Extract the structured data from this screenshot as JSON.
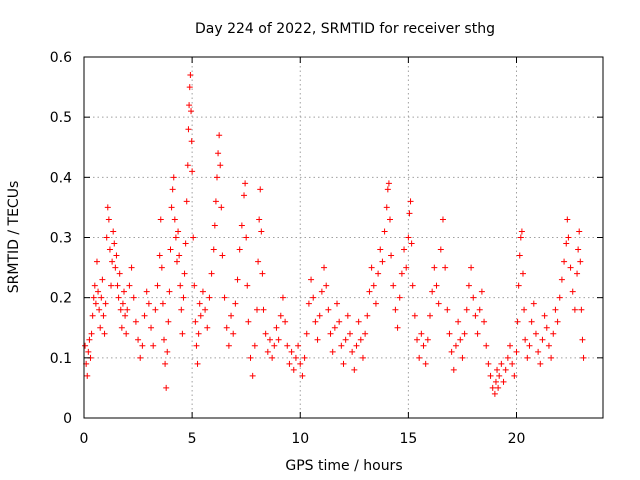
{
  "chart_data": {
    "type": "scatter",
    "title": "Day 224 of 2022, SRMTID for receiver sthg",
    "xlabel": "GPS time / hours",
    "ylabel": "SRMTID / TECUs",
    "xlim": [
      0,
      24
    ],
    "ylim": [
      0,
      0.6
    ],
    "xticks": [
      0,
      5,
      10,
      15,
      20
    ],
    "yticks": [
      0,
      0.1,
      0.2,
      0.3,
      0.4,
      0.5,
      0.6
    ],
    "xtick_labels": [
      "0",
      "5",
      "10",
      "15",
      "20"
    ],
    "ytick_labels": [
      "0",
      "0.1",
      "0.2",
      "0.3",
      "0.4",
      "0.5",
      "0.6"
    ],
    "grid": true,
    "marker": "+",
    "color": "#ff0000",
    "series": [
      {
        "name": "SRMTID",
        "points": [
          [
            0.05,
            0.12
          ],
          [
            0.1,
            0.09
          ],
          [
            0.15,
            0.07
          ],
          [
            0.2,
            0.11
          ],
          [
            0.25,
            0.13
          ],
          [
            0.3,
            0.1
          ],
          [
            0.35,
            0.14
          ],
          [
            0.4,
            0.17
          ],
          [
            0.45,
            0.2
          ],
          [
            0.5,
            0.22
          ],
          [
            0.55,
            0.19
          ],
          [
            0.6,
            0.26
          ],
          [
            0.65,
            0.21
          ],
          [
            0.7,
            0.18
          ],
          [
            0.75,
            0.15
          ],
          [
            0.8,
            0.2
          ],
          [
            0.85,
            0.23
          ],
          [
            0.9,
            0.17
          ],
          [
            0.95,
            0.14
          ],
          [
            1.0,
            0.19
          ],
          [
            1.05,
            0.3
          ],
          [
            1.1,
            0.35
          ],
          [
            1.15,
            0.33
          ],
          [
            1.2,
            0.28
          ],
          [
            1.25,
            0.22
          ],
          [
            1.3,
            0.26
          ],
          [
            1.35,
            0.31
          ],
          [
            1.4,
            0.29
          ],
          [
            1.45,
            0.25
          ],
          [
            1.5,
            0.27
          ],
          [
            1.55,
            0.22
          ],
          [
            1.6,
            0.2
          ],
          [
            1.65,
            0.24
          ],
          [
            1.7,
            0.18
          ],
          [
            1.75,
            0.15
          ],
          [
            1.8,
            0.19
          ],
          [
            1.85,
            0.21
          ],
          [
            1.9,
            0.17
          ],
          [
            1.95,
            0.14
          ],
          [
            2.0,
            0.18
          ],
          [
            2.1,
            0.22
          ],
          [
            2.2,
            0.25
          ],
          [
            2.3,
            0.2
          ],
          [
            2.4,
            0.16
          ],
          [
            2.5,
            0.13
          ],
          [
            2.6,
            0.1
          ],
          [
            2.7,
            0.12
          ],
          [
            2.8,
            0.17
          ],
          [
            2.9,
            0.21
          ],
          [
            3.0,
            0.19
          ],
          [
            3.1,
            0.15
          ],
          [
            3.2,
            0.12
          ],
          [
            3.3,
            0.18
          ],
          [
            3.4,
            0.22
          ],
          [
            3.5,
            0.27
          ],
          [
            3.55,
            0.33
          ],
          [
            3.6,
            0.25
          ],
          [
            3.65,
            0.19
          ],
          [
            3.7,
            0.13
          ],
          [
            3.75,
            0.09
          ],
          [
            3.8,
            0.05
          ],
          [
            3.85,
            0.11
          ],
          [
            3.9,
            0.16
          ],
          [
            3.95,
            0.21
          ],
          [
            4.0,
            0.28
          ],
          [
            4.05,
            0.35
          ],
          [
            4.1,
            0.38
          ],
          [
            4.15,
            0.4
          ],
          [
            4.2,
            0.33
          ],
          [
            4.25,
            0.3
          ],
          [
            4.3,
            0.26
          ],
          [
            4.35,
            0.31
          ],
          [
            4.4,
            0.27
          ],
          [
            4.45,
            0.22
          ],
          [
            4.5,
            0.18
          ],
          [
            4.55,
            0.14
          ],
          [
            4.6,
            0.2
          ],
          [
            4.65,
            0.24
          ],
          [
            4.7,
            0.29
          ],
          [
            4.75,
            0.36
          ],
          [
            4.8,
            0.42
          ],
          [
            4.83,
            0.48
          ],
          [
            4.86,
            0.52
          ],
          [
            4.89,
            0.55
          ],
          [
            4.92,
            0.57
          ],
          [
            4.95,
            0.51
          ],
          [
            4.98,
            0.46
          ],
          [
            5.0,
            0.41
          ],
          [
            5.05,
            0.3
          ],
          [
            5.1,
            0.22
          ],
          [
            5.15,
            0.16
          ],
          [
            5.2,
            0.12
          ],
          [
            5.25,
            0.09
          ],
          [
            5.3,
            0.14
          ],
          [
            5.35,
            0.19
          ],
          [
            5.4,
            0.17
          ],
          [
            5.5,
            0.21
          ],
          [
            5.6,
            0.18
          ],
          [
            5.7,
            0.15
          ],
          [
            5.8,
            0.2
          ],
          [
            5.9,
            0.24
          ],
          [
            6.0,
            0.28
          ],
          [
            6.05,
            0.32
          ],
          [
            6.1,
            0.36
          ],
          [
            6.15,
            0.4
          ],
          [
            6.2,
            0.44
          ],
          [
            6.25,
            0.47
          ],
          [
            6.3,
            0.42
          ],
          [
            6.35,
            0.35
          ],
          [
            6.4,
            0.27
          ],
          [
            6.5,
            0.2
          ],
          [
            6.6,
            0.15
          ],
          [
            6.7,
            0.12
          ],
          [
            6.8,
            0.17
          ],
          [
            6.9,
            0.14
          ],
          [
            7.0,
            0.19
          ],
          [
            7.1,
            0.23
          ],
          [
            7.2,
            0.28
          ],
          [
            7.3,
            0.32
          ],
          [
            7.4,
            0.37
          ],
          [
            7.45,
            0.39
          ],
          [
            7.5,
            0.3
          ],
          [
            7.55,
            0.22
          ],
          [
            7.6,
            0.16
          ],
          [
            7.7,
            0.1
          ],
          [
            7.8,
            0.07
          ],
          [
            7.9,
            0.12
          ],
          [
            8.0,
            0.18
          ],
          [
            8.05,
            0.26
          ],
          [
            8.1,
            0.33
          ],
          [
            8.15,
            0.38
          ],
          [
            8.2,
            0.31
          ],
          [
            8.25,
            0.24
          ],
          [
            8.3,
            0.18
          ],
          [
            8.4,
            0.14
          ],
          [
            8.5,
            0.11
          ],
          [
            8.6,
            0.13
          ],
          [
            8.7,
            0.1
          ],
          [
            8.8,
            0.12
          ],
          [
            8.9,
            0.15
          ],
          [
            9.0,
            0.13
          ],
          [
            9.1,
            0.17
          ],
          [
            9.2,
            0.2
          ],
          [
            9.3,
            0.16
          ],
          [
            9.4,
            0.12
          ],
          [
            9.5,
            0.09
          ],
          [
            9.6,
            0.11
          ],
          [
            9.7,
            0.08
          ],
          [
            9.8,
            0.1
          ],
          [
            9.9,
            0.12
          ],
          [
            10.0,
            0.09
          ],
          [
            10.1,
            0.07
          ],
          [
            10.2,
            0.1
          ],
          [
            10.3,
            0.14
          ],
          [
            10.4,
            0.19
          ],
          [
            10.5,
            0.23
          ],
          [
            10.6,
            0.2
          ],
          [
            10.7,
            0.16
          ],
          [
            10.8,
            0.13
          ],
          [
            10.9,
            0.17
          ],
          [
            11.0,
            0.21
          ],
          [
            11.1,
            0.25
          ],
          [
            11.2,
            0.22
          ],
          [
            11.3,
            0.18
          ],
          [
            11.4,
            0.14
          ],
          [
            11.5,
            0.11
          ],
          [
            11.6,
            0.15
          ],
          [
            11.7,
            0.19
          ],
          [
            11.8,
            0.16
          ],
          [
            11.9,
            0.12
          ],
          [
            12.0,
            0.09
          ],
          [
            12.1,
            0.13
          ],
          [
            12.2,
            0.17
          ],
          [
            12.3,
            0.14
          ],
          [
            12.4,
            0.11
          ],
          [
            12.5,
            0.08
          ],
          [
            12.6,
            0.12
          ],
          [
            12.7,
            0.16
          ],
          [
            12.8,
            0.13
          ],
          [
            12.9,
            0.1
          ],
          [
            13.0,
            0.14
          ],
          [
            13.1,
            0.17
          ],
          [
            13.2,
            0.21
          ],
          [
            13.3,
            0.25
          ],
          [
            13.4,
            0.22
          ],
          [
            13.5,
            0.19
          ],
          [
            13.6,
            0.24
          ],
          [
            13.7,
            0.28
          ],
          [
            13.8,
            0.26
          ],
          [
            13.9,
            0.31
          ],
          [
            14.0,
            0.35
          ],
          [
            14.05,
            0.38
          ],
          [
            14.1,
            0.39
          ],
          [
            14.15,
            0.33
          ],
          [
            14.2,
            0.27
          ],
          [
            14.3,
            0.22
          ],
          [
            14.4,
            0.18
          ],
          [
            14.5,
            0.15
          ],
          [
            14.6,
            0.2
          ],
          [
            14.7,
            0.24
          ],
          [
            14.8,
            0.28
          ],
          [
            14.9,
            0.25
          ],
          [
            15.0,
            0.3
          ],
          [
            15.05,
            0.34
          ],
          [
            15.1,
            0.36
          ],
          [
            15.15,
            0.29
          ],
          [
            15.2,
            0.22
          ],
          [
            15.3,
            0.17
          ],
          [
            15.4,
            0.13
          ],
          [
            15.5,
            0.1
          ],
          [
            15.6,
            0.14
          ],
          [
            15.7,
            0.12
          ],
          [
            15.8,
            0.09
          ],
          [
            15.9,
            0.13
          ],
          [
            16.0,
            0.17
          ],
          [
            16.1,
            0.21
          ],
          [
            16.2,
            0.25
          ],
          [
            16.3,
            0.22
          ],
          [
            16.4,
            0.19
          ],
          [
            16.5,
            0.28
          ],
          [
            16.6,
            0.33
          ],
          [
            16.7,
            0.25
          ],
          [
            16.8,
            0.18
          ],
          [
            16.9,
            0.14
          ],
          [
            17.0,
            0.11
          ],
          [
            17.1,
            0.08
          ],
          [
            17.2,
            0.12
          ],
          [
            17.3,
            0.16
          ],
          [
            17.4,
            0.13
          ],
          [
            17.5,
            0.1
          ],
          [
            17.6,
            0.14
          ],
          [
            17.7,
            0.18
          ],
          [
            17.8,
            0.22
          ],
          [
            17.9,
            0.25
          ],
          [
            18.0,
            0.2
          ],
          [
            18.1,
            0.17
          ],
          [
            18.2,
            0.14
          ],
          [
            18.3,
            0.18
          ],
          [
            18.4,
            0.21
          ],
          [
            18.5,
            0.16
          ],
          [
            18.6,
            0.12
          ],
          [
            18.7,
            0.09
          ],
          [
            18.8,
            0.07
          ],
          [
            18.9,
            0.05
          ],
          [
            19.0,
            0.04
          ],
          [
            19.05,
            0.06
          ],
          [
            19.1,
            0.08
          ],
          [
            19.15,
            0.05
          ],
          [
            19.2,
            0.07
          ],
          [
            19.3,
            0.09
          ],
          [
            19.4,
            0.06
          ],
          [
            19.5,
            0.08
          ],
          [
            19.6,
            0.1
          ],
          [
            19.7,
            0.12
          ],
          [
            19.8,
            0.09
          ],
          [
            19.9,
            0.07
          ],
          [
            20.0,
            0.11
          ],
          [
            20.05,
            0.16
          ],
          [
            20.1,
            0.22
          ],
          [
            20.15,
            0.27
          ],
          [
            20.2,
            0.3
          ],
          [
            20.25,
            0.31
          ],
          [
            20.3,
            0.24
          ],
          [
            20.35,
            0.18
          ],
          [
            20.4,
            0.13
          ],
          [
            20.5,
            0.1
          ],
          [
            20.6,
            0.12
          ],
          [
            20.7,
            0.16
          ],
          [
            20.8,
            0.19
          ],
          [
            20.9,
            0.14
          ],
          [
            21.0,
            0.11
          ],
          [
            21.1,
            0.09
          ],
          [
            21.2,
            0.13
          ],
          [
            21.3,
            0.17
          ],
          [
            21.4,
            0.15
          ],
          [
            21.5,
            0.12
          ],
          [
            21.6,
            0.1
          ],
          [
            21.7,
            0.14
          ],
          [
            21.8,
            0.18
          ],
          [
            21.9,
            0.16
          ],
          [
            22.0,
            0.2
          ],
          [
            22.1,
            0.23
          ],
          [
            22.2,
            0.26
          ],
          [
            22.3,
            0.29
          ],
          [
            22.35,
            0.33
          ],
          [
            22.4,
            0.3
          ],
          [
            22.5,
            0.25
          ],
          [
            22.6,
            0.21
          ],
          [
            22.7,
            0.18
          ],
          [
            22.8,
            0.24
          ],
          [
            22.85,
            0.28
          ],
          [
            22.9,
            0.31
          ],
          [
            22.95,
            0.26
          ],
          [
            23.0,
            0.18
          ],
          [
            23.05,
            0.13
          ],
          [
            23.1,
            0.1
          ]
        ]
      }
    ]
  }
}
